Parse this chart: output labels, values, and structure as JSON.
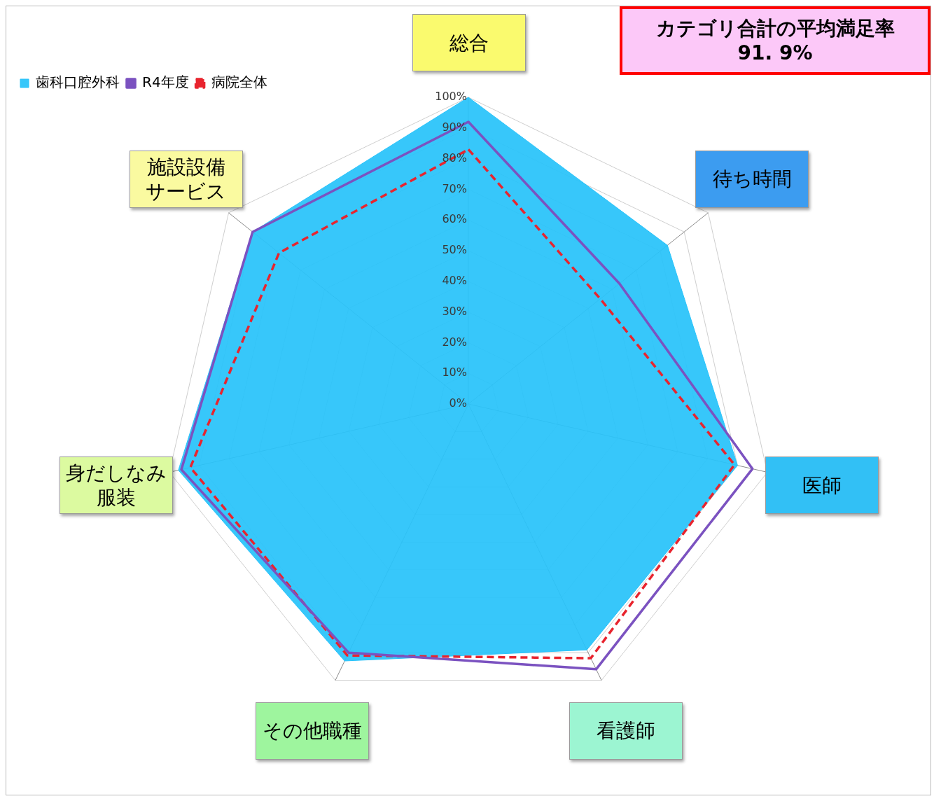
{
  "chart_data": {
    "type": "radar",
    "categories": [
      "総合",
      "待ち時間",
      "医師",
      "看護師",
      "その他職種",
      "身だしなみ服装",
      "施設設備サービス"
    ],
    "series": [
      {
        "name": "歯科口腔外科",
        "type": "area",
        "color": "#29c3fa",
        "values": [
          100,
          83,
          90,
          89,
          93,
          97,
          90
        ]
      },
      {
        "name": "R4年度",
        "color": "#7b52c0",
        "values": [
          92,
          63,
          95,
          96,
          90,
          96,
          90
        ],
        "line_style": "solid"
      },
      {
        "name": "病院全体",
        "color": "#e8242e",
        "values": [
          83,
          55,
          89,
          92,
          91,
          93,
          79
        ],
        "line_style": "dashed"
      }
    ],
    "ylim": [
      0,
      100
    ],
    "yticks": [
      {
        "value": 0,
        "label": "0%"
      },
      {
        "value": 10,
        "label": "10%"
      },
      {
        "value": 20,
        "label": "20%"
      },
      {
        "value": 30,
        "label": "30%"
      },
      {
        "value": 40,
        "label": "40%"
      },
      {
        "value": 50,
        "label": "50%"
      },
      {
        "value": 60,
        "label": "60%"
      },
      {
        "value": 70,
        "label": "70%"
      },
      {
        "value": 80,
        "label": "80%"
      },
      {
        "value": 90,
        "label": "90%"
      },
      {
        "value": 100,
        "label": "100%"
      }
    ],
    "grid": true,
    "legend": "top left",
    "marker": "none",
    "annotations": [
      "カテゴリ合計の平均満足率\n91. 9%"
    ]
  }
}
